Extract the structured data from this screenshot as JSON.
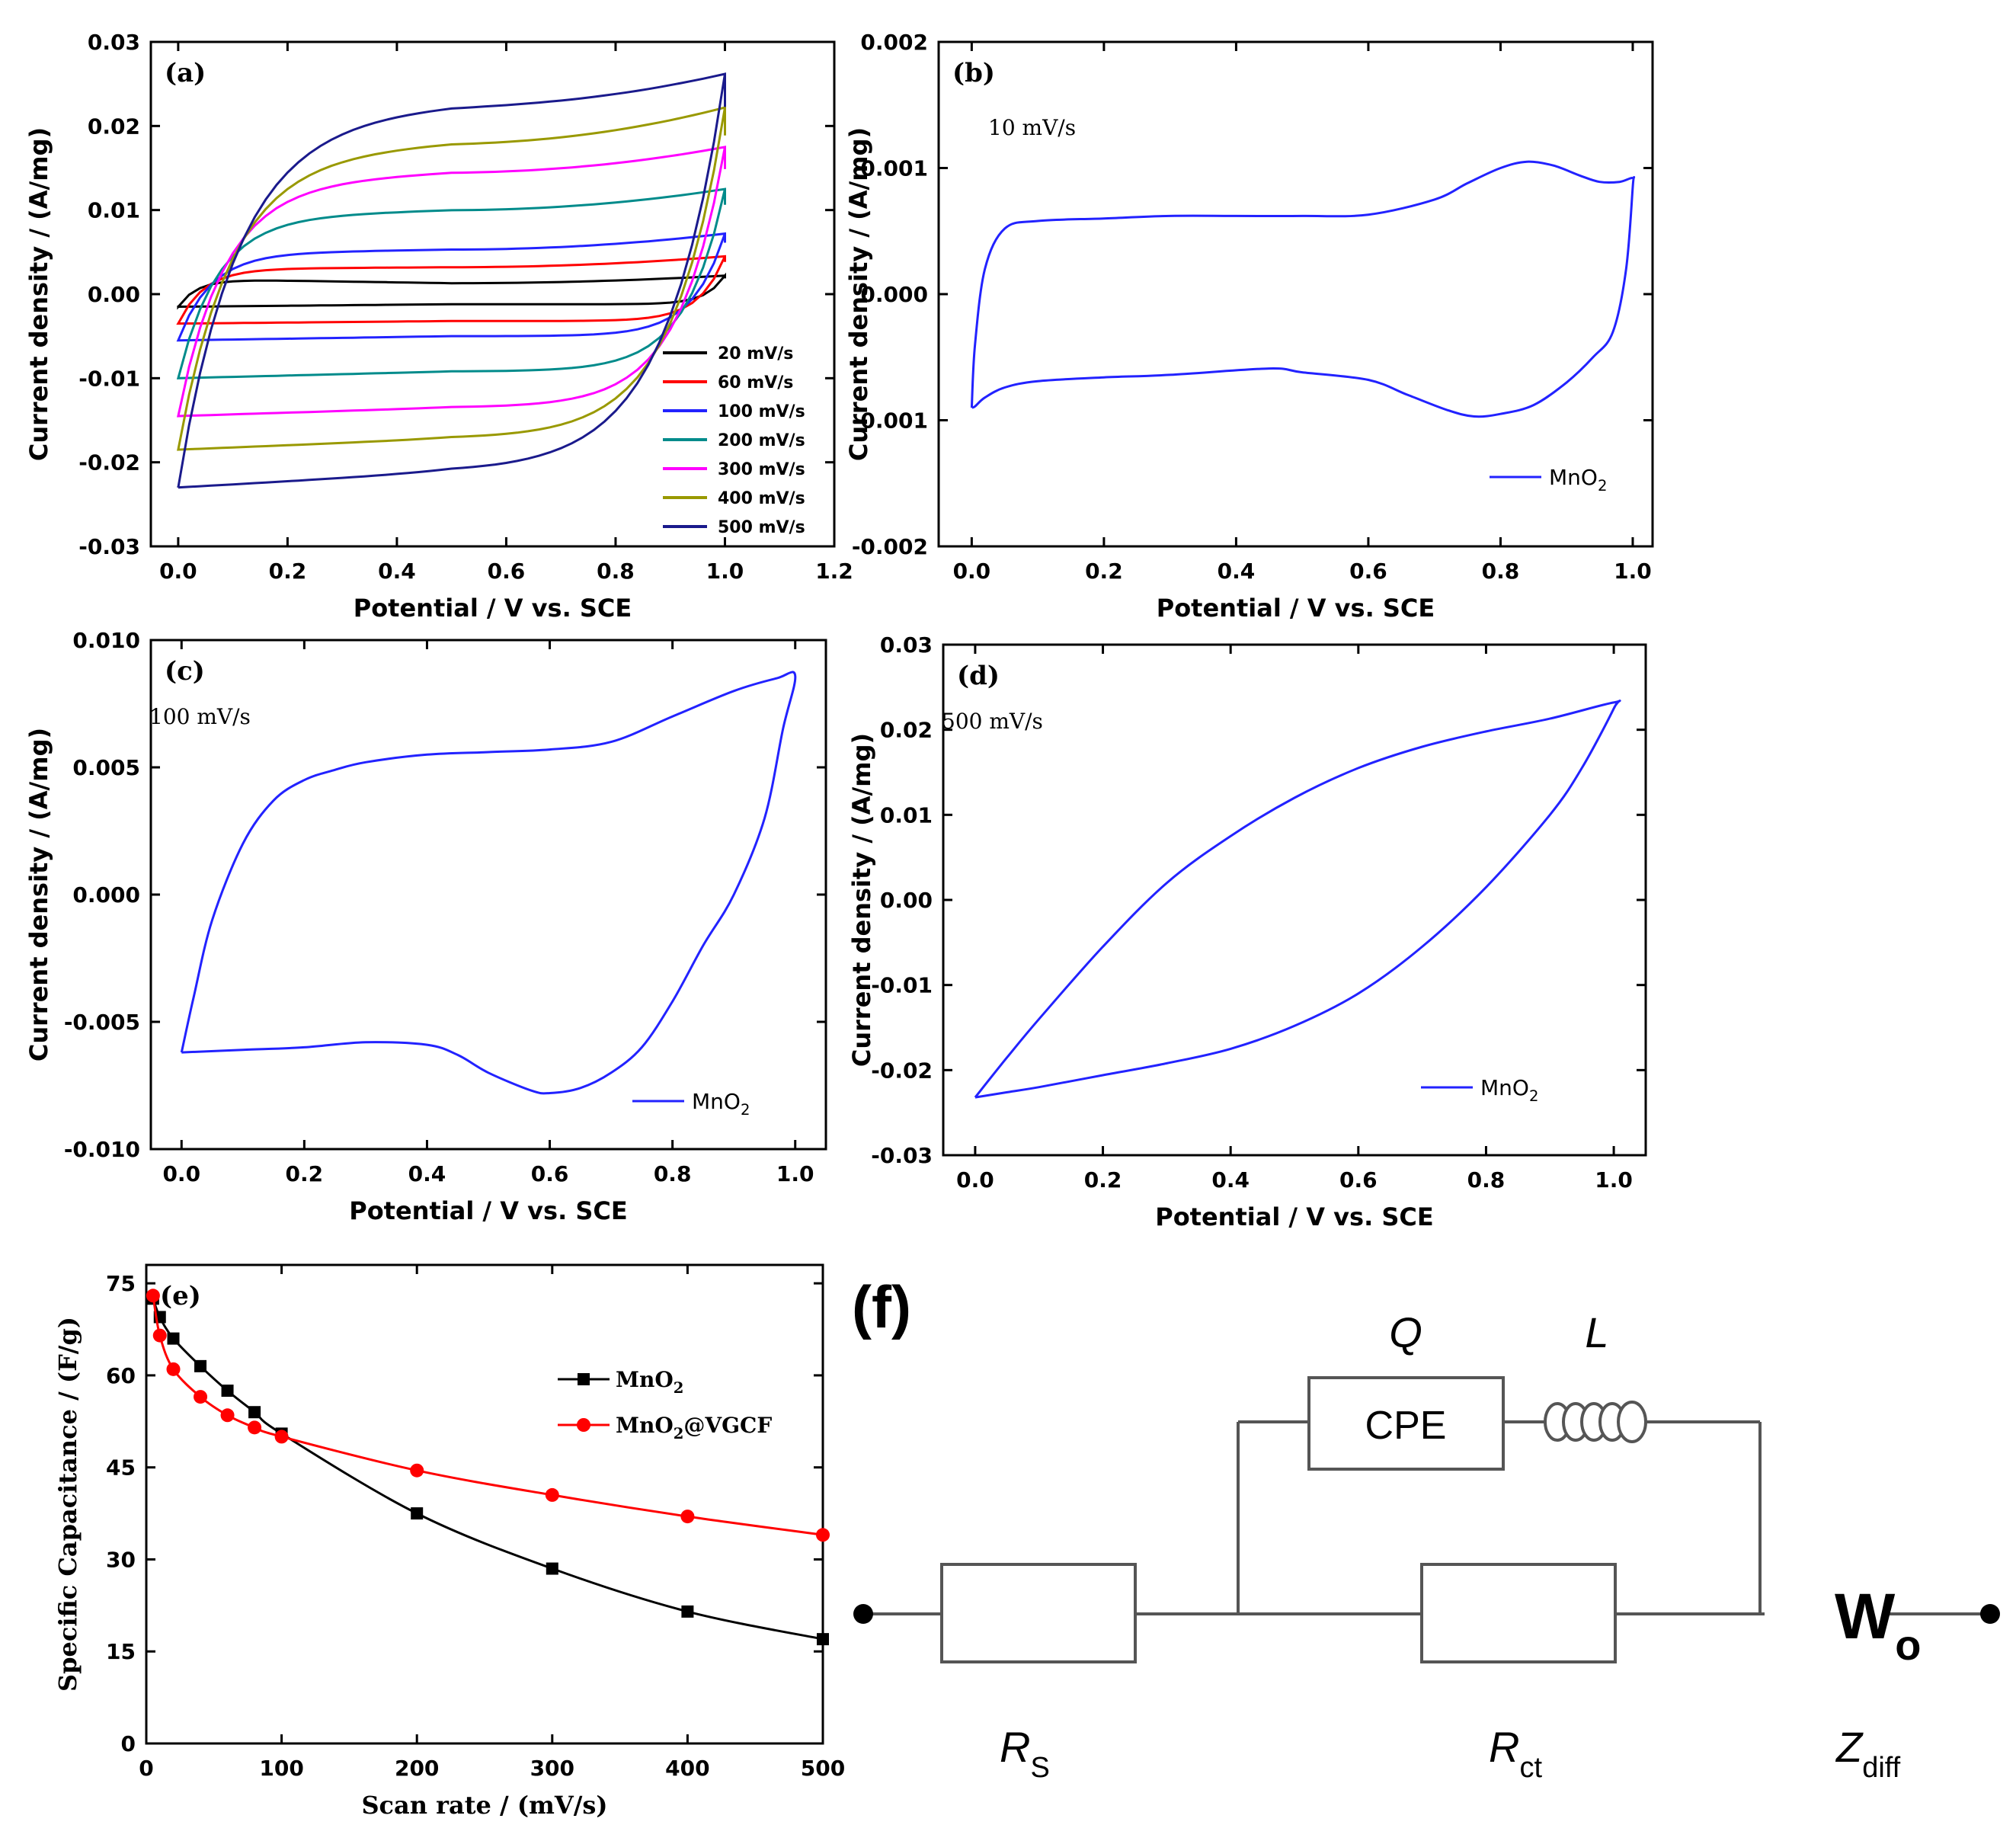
{
  "chart_data": [
    {
      "id": "a",
      "type": "line",
      "panel_label": "(a)",
      "xlabel": "Potential / V vs. SCE",
      "ylabel": "Current density / (A/mg)",
      "xlim": [
        -0.05,
        1.2
      ],
      "ylim": [
        -0.03,
        0.03
      ],
      "xticks": [
        "0.0",
        "0.2",
        "0.4",
        "0.6",
        "0.8",
        "1.0",
        "1.2"
      ],
      "yticks": [
        "-0.03",
        "-0.02",
        "-0.01",
        "0.00",
        "0.01",
        "0.02",
        "0.03"
      ],
      "legend_position": "bottom-right",
      "series": [
        {
          "name": "20 mV/s",
          "color": "#000000",
          "top": [
            0.0018,
            0.0013,
            0.0022
          ],
          "bottom": [
            -0.0015,
            -0.0012,
            -0.0025
          ]
        },
        {
          "name": "60 mV/s",
          "color": "#ff0000",
          "top": [
            0.003,
            0.0032,
            0.0045
          ],
          "bottom": [
            -0.0035,
            -0.0032,
            -0.005
          ]
        },
        {
          "name": "100 mV/s",
          "color": "#2222ff",
          "top": [
            0.0048,
            0.0053,
            0.0072
          ],
          "bottom": [
            -0.0055,
            -0.005,
            -0.0078
          ]
        },
        {
          "name": "200 mV/s",
          "color": "#008b8b",
          "top": [
            0.009,
            0.01,
            0.0125
          ],
          "bottom": [
            -0.01,
            -0.0092,
            -0.0125
          ]
        },
        {
          "name": "300 mV/s",
          "color": "#ff00ff",
          "top": [
            0.0128,
            0.0145,
            0.0175
          ],
          "bottom": [
            -0.0145,
            -0.0135,
            -0.0172
          ]
        },
        {
          "name": "400 mV/s",
          "color": "#999900",
          "top": [
            0.016,
            0.018,
            0.0222
          ],
          "bottom": [
            -0.0185,
            -0.0172,
            -0.022
          ]
        },
        {
          "name": "500 mV/s",
          "color": "#1a1a8c",
          "top": [
            0.0205,
            0.0225,
            0.0262
          ],
          "bottom": [
            -0.023,
            -0.0212,
            -0.0262
          ]
        }
      ]
    },
    {
      "id": "b",
      "type": "line",
      "panel_label": "(b)",
      "annotation": "10 mV/s",
      "xlabel": "Potential / V vs. SCE",
      "ylabel": "Current density / (A/mg)",
      "xlim": [
        -0.05,
        1.03
      ],
      "ylim": [
        -0.002,
        0.002
      ],
      "xticks": [
        "0.0",
        "0.2",
        "0.4",
        "0.6",
        "0.8",
        "1.0"
      ],
      "yticks": [
        "-0.002",
        "-0.001",
        "0.000",
        "0.001",
        "0.002"
      ],
      "legend_position": "bottom-right",
      "series": [
        {
          "name": "MnO2",
          "color": "#2222ff",
          "x": [
            0.0,
            0.005,
            0.02,
            0.05,
            0.1,
            0.2,
            0.3,
            0.4,
            0.5,
            0.6,
            0.7,
            0.75,
            0.8,
            0.84,
            0.88,
            0.92,
            0.95,
            0.98,
            1.0,
            1.0,
            0.99,
            0.97,
            0.94,
            0.9,
            0.85,
            0.8,
            0.76,
            0.72,
            0.66,
            0.6,
            0.5,
            0.45,
            0.3,
            0.2,
            0.1,
            0.05,
            0.02,
            0.005,
            0.0
          ],
          "y": [
            -0.0009,
            -0.0004,
            0.0002,
            0.00052,
            0.00058,
            0.0006,
            0.00062,
            0.00062,
            0.00062,
            0.00063,
            0.00075,
            0.00088,
            0.001,
            0.00105,
            0.00102,
            0.00094,
            0.00089,
            0.00089,
            0.00092,
            0.00085,
            0.0002,
            -0.0003,
            -0.0005,
            -0.0007,
            -0.00088,
            -0.00095,
            -0.00097,
            -0.00092,
            -0.0008,
            -0.00068,
            -0.00062,
            -0.00059,
            -0.00064,
            -0.00066,
            -0.00069,
            -0.00074,
            -0.00082,
            -0.00089,
            -0.0009
          ]
        }
      ]
    },
    {
      "id": "c",
      "type": "line",
      "panel_label": "(c)",
      "annotation": "100 mV/s",
      "xlabel": "Potential / V vs. SCE",
      "ylabel": "Current density / (A/mg)",
      "xlim": [
        -0.05,
        1.05
      ],
      "ylim": [
        -0.01,
        0.01
      ],
      "xticks": [
        "0.0",
        "0.2",
        "0.4",
        "0.6",
        "0.8",
        "1.0"
      ],
      "yticks": [
        "-0.010",
        "-0.005",
        "0.000",
        "0.005",
        "0.010"
      ],
      "legend_position": "bottom-right",
      "series": [
        {
          "name": "MnO2",
          "color": "#2222ff",
          "x": [
            0.0,
            0.02,
            0.05,
            0.1,
            0.15,
            0.2,
            0.25,
            0.3,
            0.4,
            0.5,
            0.6,
            0.7,
            0.8,
            0.9,
            0.97,
            1.0,
            0.98,
            0.95,
            0.9,
            0.85,
            0.8,
            0.75,
            0.7,
            0.65,
            0.6,
            0.57,
            0.5,
            0.45,
            0.4,
            0.3,
            0.2,
            0.1,
            0.0
          ],
          "y": [
            -0.0062,
            -0.004,
            -0.001,
            0.002,
            0.0037,
            0.0045,
            0.0049,
            0.0052,
            0.0055,
            0.0056,
            0.0057,
            0.006,
            0.007,
            0.008,
            0.0085,
            0.0086,
            0.0065,
            0.003,
            0.0,
            -0.002,
            -0.0042,
            -0.006,
            -0.007,
            -0.0076,
            -0.0078,
            -0.0077,
            -0.007,
            -0.0063,
            -0.0059,
            -0.0058,
            -0.006,
            -0.0061,
            -0.0062
          ]
        }
      ]
    },
    {
      "id": "d",
      "type": "line",
      "panel_label": "(d)",
      "annotation": "500 mV/s",
      "xlabel": "Potential / V vs. SCE",
      "ylabel": "Current density / (A/mg)",
      "xlim": [
        -0.05,
        1.05
      ],
      "ylim": [
        -0.03,
        0.03
      ],
      "xticks": [
        "0.0",
        "0.2",
        "0.4",
        "0.6",
        "0.8",
        "1.0"
      ],
      "yticks": [
        "-0.03",
        "-0.02",
        "-0.01",
        "0.00",
        "0.01",
        "0.02",
        "0.03"
      ],
      "legend_position": "bottom-right",
      "series": [
        {
          "name": "MnO2",
          "color": "#2222ff",
          "x": [
            0.0,
            0.05,
            0.1,
            0.2,
            0.3,
            0.4,
            0.5,
            0.6,
            0.7,
            0.8,
            0.9,
            1.0,
            1.0,
            0.95,
            0.9,
            0.8,
            0.7,
            0.6,
            0.5,
            0.4,
            0.3,
            0.2,
            0.1,
            0.05,
            0.0
          ],
          "y": [
            -0.0232,
            -0.0185,
            -0.014,
            -0.0055,
            0.002,
            0.0075,
            0.012,
            0.0155,
            0.018,
            0.0198,
            0.0213,
            0.0232,
            0.0225,
            0.0155,
            0.01,
            0.0015,
            -0.0055,
            -0.011,
            -0.0148,
            -0.0175,
            -0.0192,
            -0.0206,
            -0.022,
            -0.0226,
            -0.0232
          ]
        }
      ]
    },
    {
      "id": "e",
      "type": "line",
      "panel_label": "(e)",
      "xlabel": "Scan rate / (mV/s)",
      "ylabel": "Specific Capacitance / (F/g)",
      "xlim": [
        0,
        500
      ],
      "ylim": [
        0,
        78
      ],
      "xticks": [
        "0",
        "100",
        "200",
        "300",
        "400",
        "500"
      ],
      "yticks": [
        "0",
        "15",
        "30",
        "45",
        "60",
        "75"
      ],
      "legend_position": "top-right",
      "series": [
        {
          "name": "MnO2",
          "color": "#000000",
          "marker": "square",
          "x": [
            5,
            10,
            20,
            40,
            60,
            80,
            100,
            200,
            300,
            400,
            500
          ],
          "y": [
            72.5,
            69.5,
            66,
            61.5,
            57.5,
            54,
            50.5,
            37.5,
            28.5,
            21.5,
            17
          ]
        },
        {
          "name": "MnO2@VGCF",
          "color": "#ff0000",
          "marker": "circle",
          "x": [
            5,
            10,
            20,
            40,
            60,
            80,
            100,
            200,
            300,
            400,
            500
          ],
          "y": [
            73,
            66.5,
            61,
            56.5,
            53.5,
            51.5,
            50,
            44.5,
            40.5,
            37,
            34
          ]
        }
      ]
    }
  ],
  "circuit": {
    "panel_label": "(f)",
    "q_label": "Q",
    "l_label": "L",
    "cpe_label": "CPE",
    "w_label": "W",
    "w_sub": "o",
    "rs_label": "R",
    "rs_sub": "S",
    "rct_label": "R",
    "rct_sub": "ct",
    "zdiff_label": "Z",
    "zdiff_sub": "diff"
  }
}
